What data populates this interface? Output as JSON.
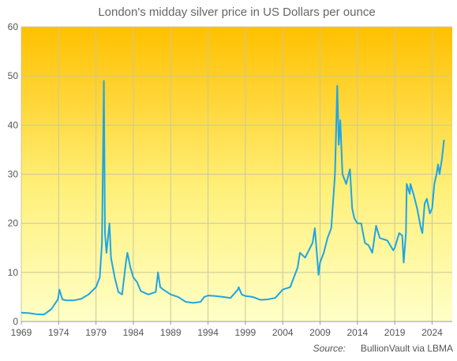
{
  "chart_data": {
    "type": "line",
    "title": "London's midday silver price in US Dollars per ounce",
    "source_label": "Source:",
    "source": "BullionVault via LBMA",
    "color": "#1ea5e4",
    "grid": true,
    "xlim": [
      1969,
      2026.7
    ],
    "ylim": [
      0,
      60
    ],
    "xticks": [
      1969,
      1974,
      1979,
      1984,
      1989,
      1994,
      1999,
      2004,
      2009,
      2014,
      2019,
      2024
    ],
    "yticks": [
      0,
      10,
      20,
      30,
      40,
      50,
      60
    ],
    "x": [
      1969,
      1970,
      1971,
      1972,
      1973,
      1973.9,
      1974.1,
      1974.5,
      1975,
      1976,
      1977,
      1978,
      1979,
      1979.5,
      1979.8,
      1980.05,
      1980.2,
      1980.4,
      1980.6,
      1980.8,
      1981,
      1981.5,
      1982,
      1982.5,
      1983,
      1983.2,
      1983.6,
      1984,
      1984.5,
      1985,
      1986,
      1987,
      1987.3,
      1987.6,
      1988,
      1989,
      1990,
      1991,
      1992,
      1993,
      1993.5,
      1994,
      1995,
      1996,
      1997,
      1998,
      1998.1,
      1998.5,
      1999,
      2000,
      2001,
      2002,
      2003,
      2004,
      2005,
      2006,
      2006.3,
      2007,
      2008,
      2008.3,
      2008.8,
      2009,
      2009.5,
      2010,
      2010.5,
      2011,
      2011.3,
      2011.5,
      2011.7,
      2012,
      2012.5,
      2013,
      2013.3,
      2013.6,
      2014,
      2014.5,
      2015,
      2015.5,
      2016,
      2016.5,
      2017,
      2018,
      2018.8,
      2019,
      2019.6,
      2020,
      2020.2,
      2020.5,
      2020.6,
      2021,
      2021.1,
      2021.5,
      2022,
      2022.5,
      2022.7,
      2023,
      2023.3,
      2023.7,
      2024,
      2024.3,
      2024.6,
      2024.8,
      2025,
      2025.3,
      2025.6
    ],
    "values": [
      1.8,
      1.7,
      1.5,
      1.4,
      2.5,
      4.5,
      6.5,
      4.5,
      4.3,
      4.3,
      4.6,
      5.5,
      7,
      9,
      16,
      49,
      18,
      14,
      17,
      20,
      13,
      9,
      6,
      5.5,
      12,
      14,
      11,
      9,
      8,
      6.2,
      5.5,
      6,
      10,
      7,
      6.5,
      5.5,
      5,
      4,
      3.8,
      4,
      5,
      5.3,
      5.2,
      5,
      4.8,
      6.5,
      7,
      5.5,
      5.2,
      5,
      4.4,
      4.5,
      4.8,
      6.5,
      7,
      11,
      14,
      13,
      16,
      19,
      9.5,
      12,
      14,
      17,
      19,
      30,
      48,
      36,
      41,
      30,
      28,
      31,
      23,
      21,
      20,
      20,
      16,
      15.5,
      14,
      19.5,
      17,
      16.5,
      14.5,
      15,
      18,
      17.5,
      12,
      18,
      28,
      26,
      28,
      26,
      23,
      19,
      18,
      24,
      25,
      22,
      23,
      28,
      30,
      32,
      30,
      33,
      37
    ]
  }
}
